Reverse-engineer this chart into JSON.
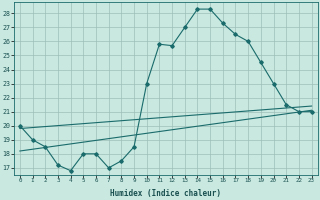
{
  "xlabel": "Humidex (Indice chaleur)",
  "background_color": "#c8e8e0",
  "grid_color": "#9dbfb8",
  "line_color": "#1a6b6b",
  "xlim": [
    -0.5,
    23.5
  ],
  "ylim": [
    16.5,
    28.8
  ],
  "yticks": [
    17,
    18,
    19,
    20,
    21,
    22,
    23,
    24,
    25,
    26,
    27,
    28
  ],
  "xticks": [
    0,
    1,
    2,
    3,
    4,
    5,
    6,
    7,
    8,
    9,
    10,
    11,
    12,
    13,
    14,
    15,
    16,
    17,
    18,
    19,
    20,
    21,
    22,
    23
  ],
  "series1_x": [
    0,
    1,
    2,
    3,
    4,
    5,
    6,
    7,
    8,
    9,
    10,
    11,
    12,
    13,
    14,
    15,
    16,
    17,
    18,
    19,
    20,
    21,
    22,
    23
  ],
  "series1_y": [
    20,
    19,
    18.5,
    17.2,
    16.8,
    18,
    18,
    17,
    17.5,
    18.5,
    23,
    25.8,
    25.7,
    27,
    28.3,
    28.3,
    27.3,
    26.5,
    26,
    24.5,
    23,
    21.5,
    21,
    21
  ],
  "series2_x": [
    0,
    23
  ],
  "series2_y": [
    18.2,
    21.1
  ],
  "series3_x": [
    0,
    23
  ],
  "series3_y": [
    19.8,
    21.4
  ]
}
